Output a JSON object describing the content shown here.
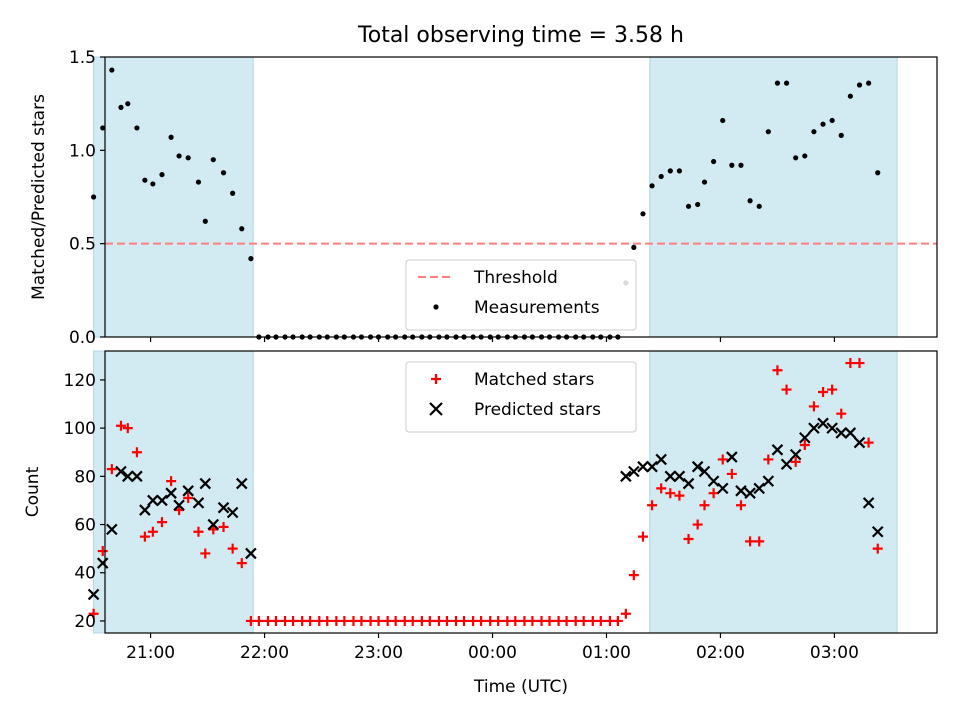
{
  "title": "Total observing time = 3.58 h",
  "colors": {
    "shade": "#add8e6",
    "threshold": "#ff7f7f",
    "matched": "#ff0000",
    "predicted": "#000000",
    "measurement": "#000000"
  },
  "chart_data": [
    {
      "type": "scatter",
      "ylabel": "Matched/Predicted stars",
      "xlabel": "",
      "xlim": [
        -3.4,
        3.9
      ],
      "ylim": [
        0,
        1.5
      ],
      "yticks": [
        0.0,
        0.5,
        1.0,
        1.5
      ],
      "ytick_labels": [
        "0.0",
        "0.5",
        "1.0",
        "1.5"
      ],
      "xticks": [
        -3,
        -2,
        -1,
        0,
        1,
        2,
        3
      ],
      "xtick_labels": [
        "",
        "",
        "",
        "",
        "",
        "",
        ""
      ],
      "shaded_intervals": [
        [
          -3.5,
          -2.1
        ],
        [
          1.38,
          3.55
        ]
      ],
      "legend": {
        "position": "lower center",
        "entries": [
          "Threshold",
          "Measurements"
        ]
      },
      "threshold": {
        "name": "Threshold",
        "y": 0.5
      },
      "series": [
        {
          "name": "Measurements",
          "points": [
            [
              -3.5,
              0.75
            ],
            [
              -3.42,
              1.12
            ],
            [
              -3.34,
              1.43
            ],
            [
              -3.26,
              1.23
            ],
            [
              -3.2,
              1.25
            ],
            [
              -3.12,
              1.12
            ],
            [
              -3.05,
              0.84
            ],
            [
              -2.98,
              0.82
            ],
            [
              -2.9,
              0.87
            ],
            [
              -2.82,
              1.07
            ],
            [
              -2.75,
              0.97
            ],
            [
              -2.67,
              0.96
            ],
            [
              -2.58,
              0.83
            ],
            [
              -2.52,
              0.62
            ],
            [
              -2.45,
              0.95
            ],
            [
              -2.36,
              0.88
            ],
            [
              -2.28,
              0.77
            ],
            [
              -2.2,
              0.58
            ],
            [
              -2.12,
              0.42
            ],
            [
              -2.05,
              0.0
            ],
            [
              -1.97,
              0.0
            ],
            [
              -1.9,
              0.0
            ],
            [
              -1.82,
              0.0
            ],
            [
              -1.75,
              0.0
            ],
            [
              -1.67,
              0.0
            ],
            [
              -1.6,
              0.0
            ],
            [
              -1.52,
              0.0
            ],
            [
              -1.45,
              0.0
            ],
            [
              -1.37,
              0.0
            ],
            [
              -1.3,
              0.0
            ],
            [
              -1.22,
              0.0
            ],
            [
              -1.15,
              0.0
            ],
            [
              -1.07,
              0.0
            ],
            [
              -1.0,
              0.0
            ],
            [
              -0.92,
              0.0
            ],
            [
              -0.85,
              0.0
            ],
            [
              -0.77,
              0.0
            ],
            [
              -0.7,
              0.0
            ],
            [
              -0.62,
              0.0
            ],
            [
              -0.55,
              0.0
            ],
            [
              -0.47,
              0.0
            ],
            [
              -0.4,
              0.0
            ],
            [
              -0.32,
              0.0
            ],
            [
              -0.25,
              0.0
            ],
            [
              -0.17,
              0.0
            ],
            [
              -0.1,
              0.0
            ],
            [
              -0.02,
              0.0
            ],
            [
              0.05,
              0.0
            ],
            [
              0.13,
              0.0
            ],
            [
              0.2,
              0.0
            ],
            [
              0.28,
              0.0
            ],
            [
              0.35,
              0.0
            ],
            [
              0.43,
              0.0
            ],
            [
              0.5,
              0.0
            ],
            [
              0.58,
              0.0
            ],
            [
              0.65,
              0.0
            ],
            [
              0.73,
              0.0
            ],
            [
              0.8,
              0.0
            ],
            [
              0.88,
              0.0
            ],
            [
              0.95,
              0.0
            ],
            [
              1.03,
              0.0
            ],
            [
              1.1,
              0.0
            ],
            [
              1.17,
              0.29
            ],
            [
              1.24,
              0.48
            ],
            [
              1.32,
              0.66
            ],
            [
              1.4,
              0.81
            ],
            [
              1.48,
              0.86
            ],
            [
              1.56,
              0.89
            ],
            [
              1.64,
              0.89
            ],
            [
              1.72,
              0.7
            ],
            [
              1.8,
              0.71
            ],
            [
              1.86,
              0.83
            ],
            [
              1.94,
              0.94
            ],
            [
              2.02,
              1.16
            ],
            [
              2.1,
              0.92
            ],
            [
              2.18,
              0.92
            ],
            [
              2.26,
              0.73
            ],
            [
              2.34,
              0.7
            ],
            [
              2.42,
              1.1
            ],
            [
              2.5,
              1.36
            ],
            [
              2.58,
              1.36
            ],
            [
              2.66,
              0.96
            ],
            [
              2.74,
              0.97
            ],
            [
              2.82,
              1.1
            ],
            [
              2.9,
              1.14
            ],
            [
              2.98,
              1.16
            ],
            [
              3.06,
              1.08
            ],
            [
              3.14,
              1.29
            ],
            [
              3.22,
              1.35
            ],
            [
              3.3,
              1.36
            ],
            [
              3.38,
              0.88
            ]
          ]
        }
      ]
    },
    {
      "type": "scatter",
      "ylabel": "Count",
      "xlabel": "Time (UTC)",
      "xlim": [
        -3.4,
        3.9
      ],
      "ylim": [
        15,
        132
      ],
      "yticks": [
        20,
        40,
        60,
        80,
        100,
        120
      ],
      "ytick_labels": [
        "20",
        "40",
        "60",
        "80",
        "100",
        "120"
      ],
      "xticks": [
        -3,
        -2,
        -1,
        0,
        1,
        2,
        3
      ],
      "xtick_labels": [
        "21:00",
        "22:00",
        "23:00",
        "00:00",
        "01:00",
        "02:00",
        "03:00"
      ],
      "shaded_intervals": [
        [
          -3.5,
          -2.1
        ],
        [
          1.38,
          3.55
        ]
      ],
      "legend": {
        "position": "upper center",
        "entries": [
          "Matched stars",
          "Predicted stars"
        ]
      },
      "series": [
        {
          "name": "Matched stars",
          "marker": "+",
          "points": [
            [
              -3.5,
              23
            ],
            [
              -3.42,
              49
            ],
            [
              -3.34,
              83
            ],
            [
              -3.26,
              101
            ],
            [
              -3.2,
              100
            ],
            [
              -3.12,
              90
            ],
            [
              -3.05,
              55
            ],
            [
              -2.98,
              57
            ],
            [
              -2.9,
              61
            ],
            [
              -2.82,
              78
            ],
            [
              -2.75,
              66
            ],
            [
              -2.67,
              71
            ],
            [
              -2.58,
              57
            ],
            [
              -2.52,
              48
            ],
            [
              -2.45,
              58
            ],
            [
              -2.36,
              59
            ],
            [
              -2.28,
              50
            ],
            [
              -2.2,
              44
            ],
            [
              -2.12,
              20
            ],
            [
              -2.05,
              20
            ],
            [
              -1.97,
              20
            ],
            [
              -1.9,
              20
            ],
            [
              -1.82,
              20
            ],
            [
              -1.75,
              20
            ],
            [
              -1.67,
              20
            ],
            [
              -1.6,
              20
            ],
            [
              -1.52,
              20
            ],
            [
              -1.45,
              20
            ],
            [
              -1.37,
              20
            ],
            [
              -1.3,
              20
            ],
            [
              -1.22,
              20
            ],
            [
              -1.15,
              20
            ],
            [
              -1.07,
              20
            ],
            [
              -1.0,
              20
            ],
            [
              -0.92,
              20
            ],
            [
              -0.85,
              20
            ],
            [
              -0.77,
              20
            ],
            [
              -0.7,
              20
            ],
            [
              -0.62,
              20
            ],
            [
              -0.55,
              20
            ],
            [
              -0.47,
              20
            ],
            [
              -0.4,
              20
            ],
            [
              -0.32,
              20
            ],
            [
              -0.25,
              20
            ],
            [
              -0.17,
              20
            ],
            [
              -0.1,
              20
            ],
            [
              -0.02,
              20
            ],
            [
              0.05,
              20
            ],
            [
              0.13,
              20
            ],
            [
              0.2,
              20
            ],
            [
              0.28,
              20
            ],
            [
              0.35,
              20
            ],
            [
              0.43,
              20
            ],
            [
              0.5,
              20
            ],
            [
              0.58,
              20
            ],
            [
              0.65,
              20
            ],
            [
              0.73,
              20
            ],
            [
              0.8,
              20
            ],
            [
              0.88,
              20
            ],
            [
              0.95,
              20
            ],
            [
              1.03,
              20
            ],
            [
              1.1,
              20
            ],
            [
              1.17,
              23
            ],
            [
              1.24,
              39
            ],
            [
              1.32,
              55
            ],
            [
              1.4,
              68
            ],
            [
              1.48,
              75
            ],
            [
              1.56,
              73
            ],
            [
              1.64,
              72
            ],
            [
              1.72,
              54
            ],
            [
              1.8,
              60
            ],
            [
              1.86,
              68
            ],
            [
              1.94,
              73
            ],
            [
              2.02,
              87
            ],
            [
              2.1,
              81
            ],
            [
              2.18,
              68
            ],
            [
              2.26,
              53
            ],
            [
              2.34,
              53
            ],
            [
              2.42,
              87
            ],
            [
              2.5,
              124
            ],
            [
              2.58,
              116
            ],
            [
              2.66,
              86
            ],
            [
              2.74,
              93
            ],
            [
              2.82,
              109
            ],
            [
              2.9,
              115
            ],
            [
              2.98,
              116
            ],
            [
              3.06,
              106
            ],
            [
              3.14,
              127
            ],
            [
              3.22,
              127
            ],
            [
              3.3,
              94
            ],
            [
              3.38,
              50
            ]
          ]
        },
        {
          "name": "Predicted stars",
          "marker": "x",
          "points": [
            [
              -3.5,
              31
            ],
            [
              -3.42,
              44
            ],
            [
              -3.34,
              58
            ],
            [
              -3.26,
              82
            ],
            [
              -3.2,
              80
            ],
            [
              -3.12,
              80
            ],
            [
              -3.05,
              66
            ],
            [
              -2.98,
              70
            ],
            [
              -2.9,
              70
            ],
            [
              -2.82,
              73
            ],
            [
              -2.75,
              68
            ],
            [
              -2.67,
              74
            ],
            [
              -2.58,
              69
            ],
            [
              -2.52,
              77
            ],
            [
              -2.45,
              60
            ],
            [
              -2.36,
              67
            ],
            [
              -2.28,
              65
            ],
            [
              -2.2,
              77
            ],
            [
              -2.12,
              48
            ],
            [
              1.17,
              80
            ],
            [
              1.24,
              82
            ],
            [
              1.32,
              84
            ],
            [
              1.4,
              84
            ],
            [
              1.48,
              87
            ],
            [
              1.56,
              80
            ],
            [
              1.64,
              80
            ],
            [
              1.72,
              77
            ],
            [
              1.8,
              84
            ],
            [
              1.86,
              82
            ],
            [
              1.94,
              78
            ],
            [
              2.02,
              75
            ],
            [
              2.1,
              88
            ],
            [
              2.18,
              74
            ],
            [
              2.26,
              73
            ],
            [
              2.34,
              75
            ],
            [
              2.42,
              78
            ],
            [
              2.5,
              91
            ],
            [
              2.58,
              85
            ],
            [
              2.66,
              89
            ],
            [
              2.74,
              96
            ],
            [
              2.82,
              100
            ],
            [
              2.9,
              102
            ],
            [
              2.98,
              100
            ],
            [
              3.06,
              98
            ],
            [
              3.14,
              98
            ],
            [
              3.22,
              94
            ],
            [
              3.3,
              69
            ],
            [
              3.38,
              57
            ]
          ]
        }
      ]
    }
  ]
}
